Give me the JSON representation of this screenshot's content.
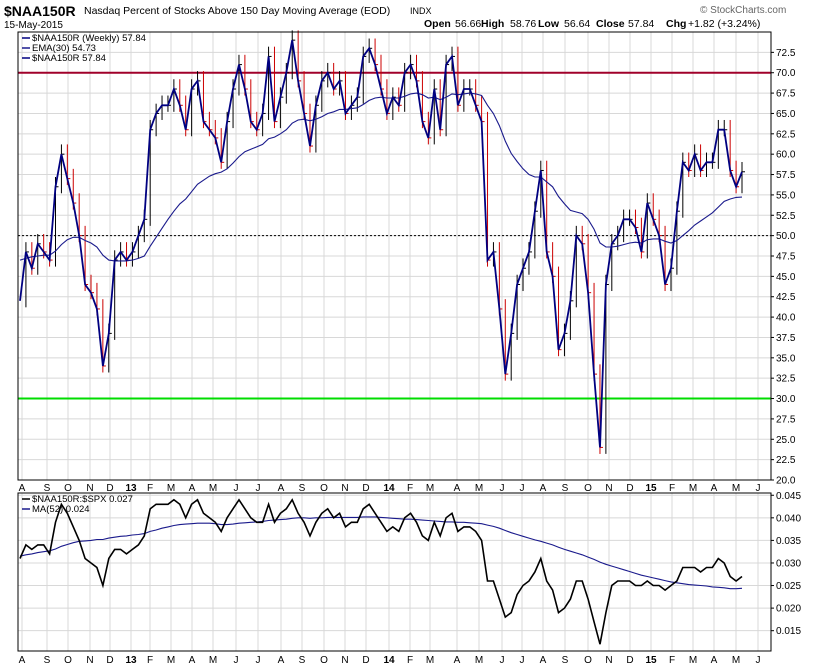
{
  "header": {
    "symbol": "$NAA150R",
    "description": "Nasdaq Percent of Stocks Above 150 Day Moving Average (EOD)",
    "exchange": "INDX",
    "date": "15-May-2015",
    "open_label": "Open",
    "open": "56.66",
    "high_label": "High",
    "high": "58.76",
    "low_label": "Low",
    "low": "56.64",
    "close_label": "Close",
    "close": "57.84",
    "chg_label": "Chg",
    "chg": "+1.82 (+3.24%)",
    "credit": "© StockCharts.com"
  },
  "colors": {
    "price": "#000080",
    "ema": "#1a1a8c",
    "up_bar": "#000000",
    "down_bar": "#cc0000",
    "line70": "#a0002a",
    "line30": "#00dd00",
    "grid": "#d8d8d8",
    "ratio_line": "#000000",
    "ma_line": "#1a1a8c"
  },
  "chart_data": [
    {
      "type": "line",
      "title": "$NAA150R Nasdaq Percent of Stocks Above 150 Day Moving Average (EOD)",
      "legend": [
        {
          "label": "$NAA150R (Weekly) 57.84",
          "color": "#000080"
        },
        {
          "label": "EMA(30) 54.73",
          "color": "#1a1a8c"
        },
        {
          "label": "$NAA150R 57.84",
          "color": "#000080"
        }
      ],
      "legend_position": "top-left",
      "ylim": [
        20.0,
        75.0
      ],
      "y_ticks": [
        "20.0",
        "22.5",
        "25.0",
        "27.5",
        "30.0",
        "32.5",
        "35.0",
        "37.5",
        "40.0",
        "42.5",
        "45.0",
        "47.5",
        "50.0",
        "52.5",
        "55.0",
        "57.5",
        "60.0",
        "62.5",
        "65.0",
        "67.5",
        "70.0",
        "72.5"
      ],
      "x_month_labels": [
        "A",
        "S",
        "O",
        "N",
        "D",
        "13",
        "F",
        "M",
        "A",
        "M",
        "J",
        "J",
        "A",
        "S",
        "O",
        "N",
        "D",
        "14",
        "F",
        "M",
        "A",
        "M",
        "J",
        "J",
        "A",
        "S",
        "O",
        "N",
        "D",
        "15",
        "F",
        "M",
        "A",
        "M",
        "J"
      ],
      "reference_lines": [
        {
          "value": 70,
          "color": "#a0002a"
        },
        {
          "value": 50,
          "style": "dotted"
        },
        {
          "value": 30,
          "color": "#00dd00"
        }
      ],
      "grid": true,
      "series": [
        {
          "name": "$NAA150R (Weekly)",
          "values": [
            42,
            48,
            46,
            49,
            48,
            47,
            56,
            60,
            57,
            54,
            50,
            44,
            43,
            41,
            34,
            38,
            47,
            48,
            47,
            48,
            50,
            52,
            63,
            65,
            66,
            66,
            68,
            66,
            63,
            68,
            69,
            64,
            63,
            62,
            59,
            64,
            68,
            71,
            68,
            64,
            63,
            65,
            72,
            64,
            67,
            70,
            74,
            69,
            65,
            61,
            66,
            69,
            70,
            68,
            69,
            65,
            66,
            67,
            72,
            73,
            71,
            68,
            65,
            67,
            66,
            70,
            71,
            69,
            64,
            62,
            68,
            63,
            71,
            72,
            66,
            68,
            68,
            66,
            64,
            47,
            48,
            41,
            33,
            38,
            44,
            46,
            48,
            53,
            58,
            48,
            45,
            36,
            38,
            42,
            50,
            49,
            43,
            33,
            24,
            44,
            49,
            50,
            52,
            52,
            51,
            48,
            54,
            52,
            50,
            44,
            46,
            53,
            59,
            58,
            60,
            58,
            59,
            59,
            63,
            63,
            58,
            56,
            57.84
          ]
        },
        {
          "name": "EMA(30)",
          "values": [
            47,
            47.2,
            47.4,
            47.5,
            47.6,
            47.6,
            48.1,
            48.9,
            49.5,
            49.8,
            49.8,
            49.4,
            49.1,
            48.6,
            47.6,
            47.0,
            46.9,
            46.9,
            46.9,
            47.0,
            47.2,
            47.5,
            48.7,
            49.8,
            50.9,
            52.0,
            53.0,
            53.9,
            54.5,
            55.4,
            56.3,
            56.8,
            57.3,
            57.6,
            57.8,
            58.2,
            58.9,
            59.7,
            60.3,
            60.6,
            60.9,
            61.2,
            61.9,
            62.1,
            62.5,
            63.0,
            63.8,
            64.2,
            64.3,
            64.1,
            64.3,
            64.6,
            65.0,
            65.2,
            65.5,
            65.5,
            65.6,
            65.7,
            66.1,
            66.6,
            66.9,
            67.0,
            66.9,
            66.9,
            66.9,
            67.1,
            67.4,
            67.5,
            67.3,
            66.9,
            67.0,
            66.7,
            67.0,
            67.4,
            67.3,
            67.4,
            67.5,
            67.4,
            67.2,
            66.0,
            65.0,
            63.5,
            61.6,
            60.1,
            59.1,
            58.2,
            57.5,
            57.2,
            57.2,
            56.6,
            56.0,
            54.8,
            53.9,
            53.1,
            52.9,
            52.7,
            52.0,
            50.8,
            49.1,
            48.6,
            48.6,
            48.7,
            48.9,
            49.1,
            49.2,
            49.1,
            49.5,
            49.6,
            49.6,
            49.3,
            49.1,
            49.4,
            50.0,
            50.6,
            51.3,
            51.8,
            52.3,
            52.8,
            53.5,
            54.2,
            54.5,
            54.7,
            54.73
          ]
        }
      ]
    },
    {
      "type": "line",
      "title": "$NAA150R:$SPX",
      "legend": [
        {
          "label": "$NAA150R:$SPX 0.027",
          "color": "#000000"
        },
        {
          "label": "MA(52) 0.024",
          "color": "#1a1a8c"
        }
      ],
      "legend_position": "top-left",
      "ylim": [
        0.0105,
        0.0455
      ],
      "y_ticks": [
        "0.015",
        "0.020",
        "0.025",
        "0.030",
        "0.035",
        "0.040",
        "0.045"
      ],
      "x_month_labels": [
        "A",
        "S",
        "O",
        "N",
        "D",
        "13",
        "F",
        "M",
        "A",
        "M",
        "J",
        "J",
        "A",
        "S",
        "O",
        "N",
        "D",
        "14",
        "F",
        "M",
        "A",
        "M",
        "J",
        "J",
        "A",
        "S",
        "O",
        "N",
        "D",
        "15",
        "F",
        "M",
        "A",
        "M",
        "J"
      ],
      "grid": true,
      "series": [
        {
          "name": "$NAA150R:$SPX",
          "values": [
            0.031,
            0.034,
            0.033,
            0.034,
            0.034,
            0.032,
            0.039,
            0.043,
            0.041,
            0.038,
            0.035,
            0.031,
            0.03,
            0.029,
            0.025,
            0.031,
            0.033,
            0.033,
            0.032,
            0.033,
            0.034,
            0.036,
            0.042,
            0.043,
            0.043,
            0.043,
            0.044,
            0.043,
            0.04,
            0.043,
            0.044,
            0.041,
            0.04,
            0.039,
            0.037,
            0.04,
            0.042,
            0.044,
            0.042,
            0.04,
            0.039,
            0.039,
            0.043,
            0.039,
            0.041,
            0.042,
            0.044,
            0.041,
            0.039,
            0.036,
            0.039,
            0.041,
            0.042,
            0.04,
            0.041,
            0.038,
            0.039,
            0.039,
            0.042,
            0.043,
            0.041,
            0.039,
            0.037,
            0.038,
            0.037,
            0.04,
            0.041,
            0.039,
            0.036,
            0.035,
            0.039,
            0.036,
            0.04,
            0.041,
            0.037,
            0.038,
            0.038,
            0.037,
            0.035,
            0.026,
            0.026,
            0.022,
            0.018,
            0.019,
            0.023,
            0.025,
            0.026,
            0.028,
            0.031,
            0.026,
            0.024,
            0.019,
            0.02,
            0.022,
            0.026,
            0.026,
            0.022,
            0.017,
            0.012,
            0.019,
            0.025,
            0.026,
            0.026,
            0.026,
            0.025,
            0.025,
            0.026,
            0.025,
            0.025,
            0.024,
            0.025,
            0.026,
            0.029,
            0.029,
            0.029,
            0.028,
            0.029,
            0.029,
            0.031,
            0.03,
            0.027,
            0.026,
            0.027
          ]
        },
        {
          "name": "MA(52)",
          "values": [
            0.0315,
            0.0318,
            0.032,
            0.0323,
            0.0325,
            0.0327,
            0.0331,
            0.0337,
            0.0341,
            0.0345,
            0.0348,
            0.0349,
            0.035,
            0.0352,
            0.0352,
            0.0355,
            0.0357,
            0.0359,
            0.036,
            0.0362,
            0.0363,
            0.0365,
            0.037,
            0.0373,
            0.0377,
            0.038,
            0.0383,
            0.0385,
            0.0386,
            0.0387,
            0.0388,
            0.0388,
            0.0388,
            0.0387,
            0.0385,
            0.0385,
            0.0386,
            0.0388,
            0.0389,
            0.039,
            0.0391,
            0.0392,
            0.0394,
            0.0395,
            0.0396,
            0.0397,
            0.0399,
            0.04,
            0.04,
            0.0399,
            0.04,
            0.04,
            0.0401,
            0.0401,
            0.0401,
            0.0401,
            0.0401,
            0.0401,
            0.0402,
            0.0402,
            0.0402,
            0.0401,
            0.04,
            0.0399,
            0.0398,
            0.0397,
            0.0397,
            0.0396,
            0.0395,
            0.0394,
            0.0393,
            0.0392,
            0.0391,
            0.0391,
            0.039,
            0.039,
            0.0389,
            0.0388,
            0.0387,
            0.0384,
            0.0381,
            0.0377,
            0.0372,
            0.0367,
            0.0363,
            0.0359,
            0.0355,
            0.0351,
            0.0348,
            0.0344,
            0.034,
            0.0335,
            0.033,
            0.0326,
            0.0322,
            0.0318,
            0.0313,
            0.0308,
            0.0302,
            0.0297,
            0.0293,
            0.0289,
            0.0285,
            0.0281,
            0.0277,
            0.0273,
            0.027,
            0.0267,
            0.0264,
            0.0261,
            0.0258,
            0.0256,
            0.0254,
            0.0252,
            0.0251,
            0.025,
            0.0249,
            0.0247,
            0.0246,
            0.0245,
            0.0243,
            0.0243,
            0.0244
          ]
        }
      ]
    }
  ]
}
